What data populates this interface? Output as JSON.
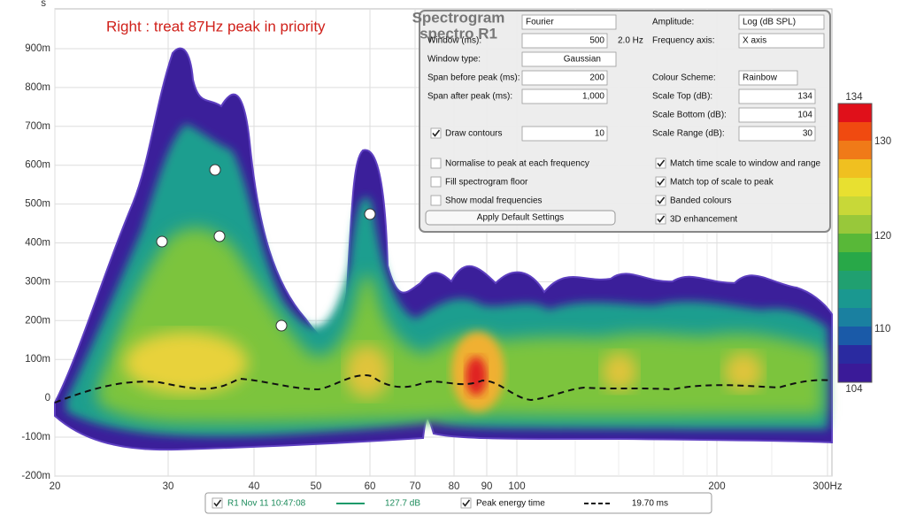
{
  "annotation": "Right : treat 87Hz peak in priority",
  "plot": {
    "y_unit": "s",
    "y_ticks": [
      "900m",
      "800m",
      "700m",
      "600m",
      "500m",
      "400m",
      "300m",
      "200m",
      "100m",
      "0",
      "-100m",
      "-200m"
    ],
    "x_ticks": [
      "20",
      "30",
      "40",
      "50",
      "60",
      "70",
      "80",
      "90",
      "100",
      "200",
      "300Hz"
    ]
  },
  "colorbar": {
    "labels": [
      "134",
      "130",
      "120",
      "110",
      "104"
    ]
  },
  "panel": {
    "title": "Spectrogram",
    "subtitle": "spectro R1",
    "method": "Fourier",
    "window_label": "Window (ms):",
    "window_value": "500",
    "window_res": "2.0 Hz",
    "window_type_label": "Window type:",
    "window_type": "Gaussian",
    "span_before_label": "Span before peak (ms):",
    "span_before": "200",
    "span_after_label": "Span after peak (ms):",
    "span_after": "1,000",
    "contours": {
      "label": "Draw contours",
      "checked": true,
      "value": "10"
    },
    "amplitude_label": "Amplitude:",
    "amplitude": "Log (dB SPL)",
    "freq_axis_label": "Frequency axis:",
    "freq_axis": "X axis",
    "scheme_label": "Colour Scheme:",
    "scheme": "Rainbow",
    "scale_top_label": "Scale Top (dB):",
    "scale_top": "134",
    "scale_bottom_label": "Scale Bottom (dB):",
    "scale_bottom": "104",
    "scale_range_label": "Scale Range (dB):",
    "scale_range": "30",
    "checks": [
      {
        "label": "Normalise to peak at each frequency",
        "checked": false
      },
      {
        "label": "Fill spectrogram floor",
        "checked": false
      },
      {
        "label": "Show modal frequencies",
        "checked": false
      },
      {
        "label": "Match time scale to window and range",
        "checked": true
      },
      {
        "label": "Match top of scale to peak",
        "checked": true
      },
      {
        "label": "Banded colours",
        "checked": true
      },
      {
        "label": "3D enhancement",
        "checked": true
      }
    ],
    "button": "Apply Default Settings"
  },
  "legend": {
    "trace": {
      "label": "R1 Nov 11 10:47:08",
      "checked": true,
      "value": "127.7 dB"
    },
    "peak": {
      "label": "Peak energy time",
      "checked": true,
      "value": "19.70 ms"
    }
  }
}
